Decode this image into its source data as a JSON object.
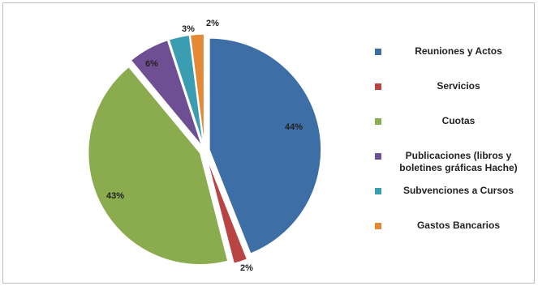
{
  "chart_data": {
    "type": "pie",
    "categories": [
      "Reuniones y Actos",
      "Servicios",
      "Cuotas",
      "Publicaciones (libros y boletines gráficas Hache)",
      "Subvenciones a Cursos",
      "Gastos Bancarios"
    ],
    "values": [
      44,
      2,
      43,
      6,
      3,
      2
    ],
    "data_labels": [
      "44%",
      "2%",
      "43%",
      "6%",
      "3%",
      "2%"
    ],
    "colors": [
      "#3d6ea6",
      "#b84444",
      "#8aac4e",
      "#6f4f93",
      "#3a9db1",
      "#e48a36"
    ],
    "legend_position": "right",
    "exploded": true
  },
  "legend": {
    "items": [
      {
        "label": "Reuniones y Actos",
        "color": "#3d6ea6"
      },
      {
        "label": "Servicios",
        "color": "#b84444"
      },
      {
        "label": "Cuotas",
        "color": "#8aac4e"
      },
      {
        "label": "Publicaciones (libros y boletines gráficas Hache)",
        "color": "#6f4f93"
      },
      {
        "label": "Subvenciones a Cursos",
        "color": "#3a9db1"
      },
      {
        "label": "Gastos Bancarios",
        "color": "#e48a36"
      }
    ]
  }
}
